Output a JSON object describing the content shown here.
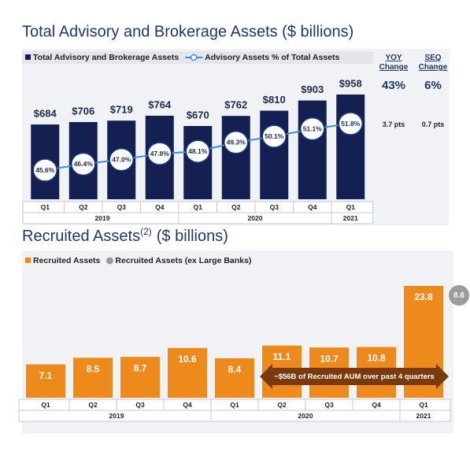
{
  "chart_data": [
    {
      "type": "bar",
      "title": "Total Advisory and Brokerage Assets ($ billions)",
      "categories": [
        "Q1",
        "Q2",
        "Q3",
        "Q4",
        "Q1",
        "Q2",
        "Q3",
        "Q4",
        "Q1"
      ],
      "x_groups": [
        "2019",
        "2019",
        "2019",
        "2019",
        "2020",
        "2020",
        "2020",
        "2020",
        "2021"
      ],
      "series": [
        {
          "name": "Total Advisory and Brokerage Assets",
          "type": "bar",
          "color": "#141f52",
          "values": [
            684,
            706,
            719,
            764,
            670,
            762,
            810,
            903,
            958
          ],
          "value_labels": [
            "$684",
            "$706",
            "$719",
            "$764",
            "$670",
            "$762",
            "$810",
            "$903",
            "$958"
          ]
        },
        {
          "name": "Advisory Assets % of Total Assets",
          "type": "line",
          "color": "#3a8ed6",
          "values": [
            45.6,
            46.4,
            47.0,
            47.8,
            48.1,
            49.3,
            50.1,
            51.1,
            51.8
          ],
          "value_labels": [
            "45.6%",
            "46.4%",
            "47.0%",
            "47.8%",
            "48.1%",
            "49.3%",
            "50.1%",
            "51.1%",
            "51.8%"
          ]
        }
      ],
      "summary": [
        {
          "header": "YOY Change",
          "rows": [
            "43%",
            "3.7 pts"
          ]
        },
        {
          "header": "SEQ Change",
          "rows": [
            "6%",
            "0.7 pts"
          ]
        }
      ]
    },
    {
      "type": "bar",
      "title_parts": [
        "Recruited Assets",
        "(2)",
        "($ billions)"
      ],
      "categories": [
        "Q1",
        "Q2",
        "Q3",
        "Q4",
        "Q1",
        "Q2",
        "Q3",
        "Q4",
        "Q1"
      ],
      "x_groups": [
        "2019",
        "2019",
        "2019",
        "2019",
        "2020",
        "2020",
        "2020",
        "2020",
        "2021"
      ],
      "series": [
        {
          "name": "Recruited Assets",
          "type": "bar",
          "color": "#ee8a1c",
          "values": [
            7.1,
            8.5,
            8.7,
            10.6,
            8.4,
            11.1,
            10.7,
            10.8,
            23.8
          ]
        },
        {
          "name": "Recruited Assets (ex Large Banks)",
          "type": "badge",
          "color": "#9b9b9b",
          "values": [
            null,
            null,
            null,
            null,
            null,
            null,
            null,
            null,
            8.6
          ]
        }
      ],
      "annotation": "~$56B of Recruited AUM over past 4 quarters"
    }
  ]
}
